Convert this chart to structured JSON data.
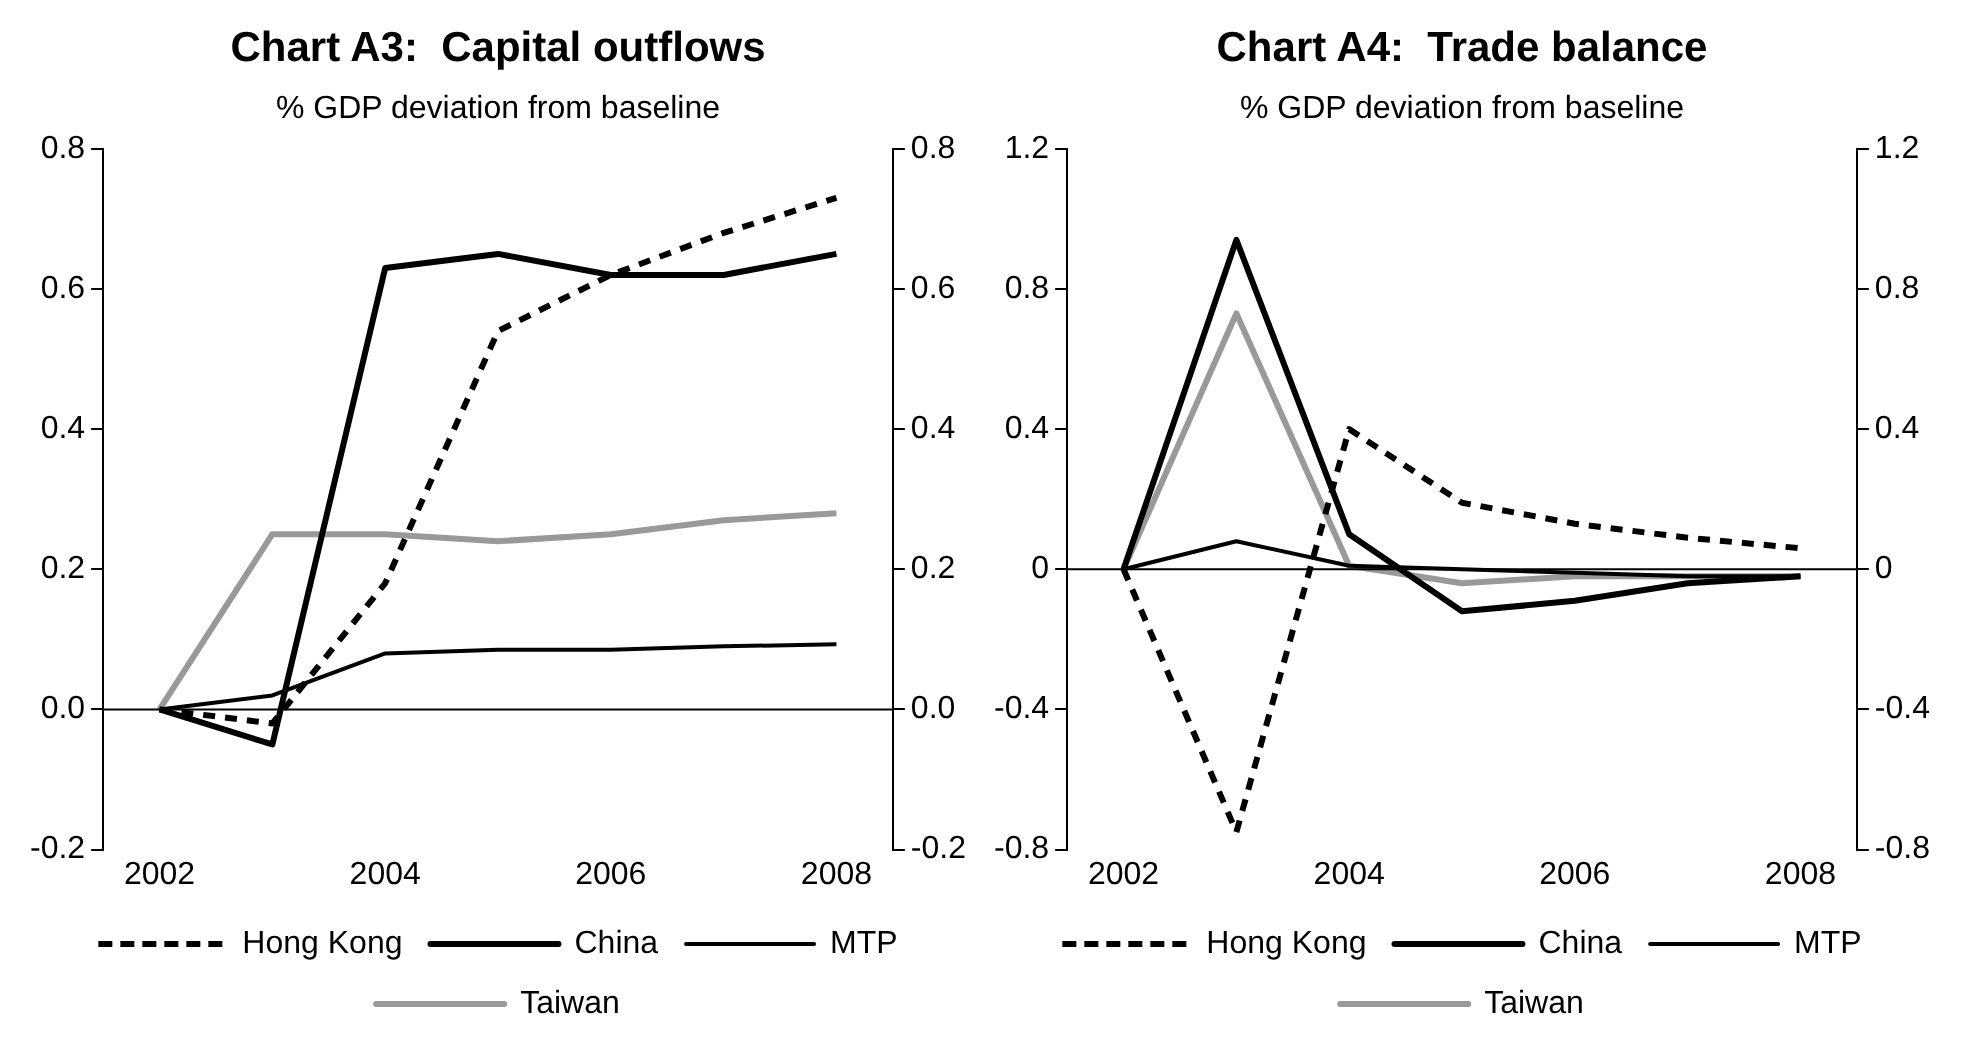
{
  "chart_data": [
    {
      "type": "line",
      "title": "Chart A3:  Capital outflows",
      "subtitle": "% GDP deviation from baseline",
      "categories": [
        "2002",
        null,
        "2004",
        null,
        "2006",
        null,
        "2008"
      ],
      "series": [
        {
          "name": "Hong Kong",
          "color": "#000000",
          "line_style": "dashed",
          "values": [
            0,
            -0.02,
            0.18,
            0.54,
            0.62,
            0.68,
            0.73
          ]
        },
        {
          "name": "China",
          "color": "#000000",
          "line_style": "solid",
          "values": [
            0,
            -0.05,
            0.63,
            0.65,
            0.62,
            0.62,
            0.65
          ]
        },
        {
          "name": "MTP",
          "color": "#000000",
          "line_style": "solid",
          "values": [
            0,
            0.02,
            0.08,
            0.085,
            0.085,
            0.09,
            0.093
          ]
        },
        {
          "name": "Taiwan",
          "color": "#999999",
          "line_style": "solid",
          "values": [
            0,
            0.25,
            0.25,
            0.24,
            0.25,
            0.27,
            0.28
          ]
        }
      ],
      "ylim": [
        -0.2,
        0.8
      ],
      "yticks": [
        {
          "value": -0.2,
          "label": "-0.2"
        },
        {
          "value": 0,
          "label": "0.0"
        },
        {
          "value": 0.2,
          "label": "0.2"
        },
        {
          "value": 0.4,
          "label": "0.4"
        },
        {
          "value": 0.6,
          "label": "0.6"
        },
        {
          "value": 0.8,
          "label": "0.8"
        }
      ],
      "y2lim": [
        -0.2,
        0.8
      ],
      "y2ticks": [
        {
          "value": -0.2,
          "label": "-0.2"
        },
        {
          "value": 0,
          "label": "0.0"
        },
        {
          "value": 0.2,
          "label": "0.2"
        },
        {
          "value": 0.4,
          "label": "0.4"
        },
        {
          "value": 0.6,
          "label": "0.6"
        },
        {
          "value": 0.8,
          "label": "0.8"
        }
      ],
      "ref_lines": [
        {
          "axis": "y",
          "value": 0
        }
      ],
      "grid": false,
      "legend": "bottom",
      "marker": "none"
    },
    {
      "type": "line",
      "title": "Chart A4:  Trade balance",
      "subtitle": "% GDP deviation from baseline",
      "categories": [
        "2002",
        null,
        "2004",
        null,
        "2006",
        null,
        "2008"
      ],
      "series": [
        {
          "name": "Hong Kong",
          "color": "#000000",
          "line_style": "dashed",
          "values": [
            0,
            -0.75,
            0.4,
            0.19,
            0.13,
            0.09,
            0.06
          ]
        },
        {
          "name": "China",
          "color": "#000000",
          "line_style": "solid",
          "values": [
            0,
            0.94,
            0.1,
            -0.12,
            -0.09,
            -0.04,
            -0.02
          ]
        },
        {
          "name": "MTP",
          "color": "#000000",
          "line_style": "solid",
          "values": [
            0,
            0.08,
            0.01,
            0,
            -0.01,
            -0.02,
            -0.02
          ]
        },
        {
          "name": "Taiwan",
          "color": "#999999",
          "line_style": "solid",
          "values": [
            0,
            0.73,
            0.01,
            -0.04,
            -0.02,
            -0.02,
            -0.02
          ]
        }
      ],
      "ylim": [
        -0.8,
        1.2
      ],
      "yticks": [
        -0.8,
        -0.4,
        0,
        0.4,
        0.8,
        1.2
      ],
      "y2lim": [
        -0.8,
        1.2
      ],
      "y2ticks": [
        -0.8,
        -0.4,
        0,
        0.4,
        0.8,
        1.2
      ],
      "ref_lines": [
        {
          "axis": "y",
          "value": 0
        }
      ],
      "grid": false,
      "legend": "bottom",
      "marker": "none"
    }
  ]
}
